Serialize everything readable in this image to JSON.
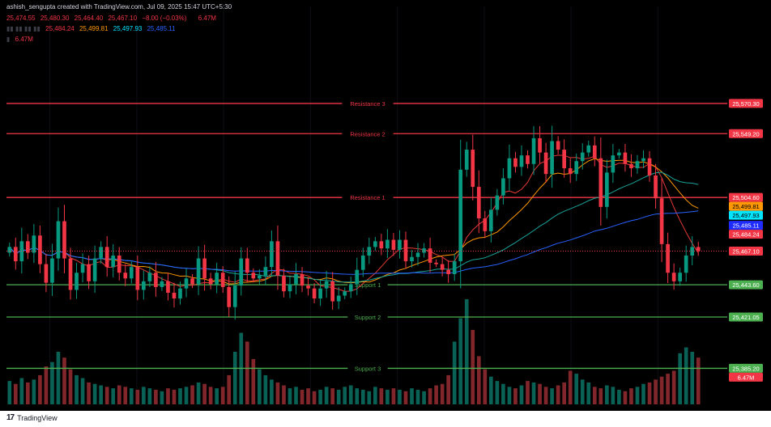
{
  "header": {
    "credit": "ashish_sengupta created with TradingView.com, Jul 09, 2025 15:47 UTC+5:30",
    "ohlc": {
      "open": "25,474.55",
      "high": "25,480.30",
      "low": "25,464.40",
      "close": "25,467.10",
      "change": "−8.00 (−0.03%)",
      "volume": "6.47M"
    },
    "ma_values": [
      "25,484.24",
      "25,499.81",
      "25,497.93",
      "25,485.11"
    ],
    "volume_value": "6.47M"
  },
  "footer": {
    "logo_text": "TradingView"
  },
  "colors": {
    "background": "#000000",
    "up": "#089981",
    "down": "#f23645",
    "ma_red": "#e53935",
    "ma_orange": "#ff9800",
    "ma_cyan": "#1aa39a",
    "ma_blue": "#2962ff",
    "resistance": "#f23645",
    "support": "#4caf50"
  },
  "chart_data": {
    "type": "candlestick",
    "y_range": [
      25360,
      25620
    ],
    "price_axis_badges": [
      {
        "value": "25,570.30",
        "kind": "resistance",
        "price": 25570.3
      },
      {
        "value": "25,549.20",
        "kind": "resistance",
        "price": 25549.2
      },
      {
        "value": "25,504.60",
        "kind": "resistance",
        "price": 25504.6
      },
      {
        "value": "25,499.81",
        "kind": "ma_orange",
        "price": 25499.81
      },
      {
        "value": "25,497.93",
        "kind": "ma_cyan",
        "price": 25497.93
      },
      {
        "value": "25,485.11",
        "kind": "ma_blue",
        "price": 25485.11
      },
      {
        "value": "25,484.24",
        "kind": "ma_red",
        "price": 25484.24
      },
      {
        "value": "25,467.10",
        "kind": "last",
        "price": 25467.1
      },
      {
        "value": "25,443.60",
        "kind": "support",
        "price": 25443.6
      },
      {
        "value": "25,421.05",
        "kind": "support",
        "price": 25421.05
      },
      {
        "value": "25,385.20",
        "kind": "support",
        "price": 25385.2
      },
      {
        "value": "6.47M",
        "kind": "volume",
        "price": null
      }
    ],
    "levels": [
      {
        "label": "Resistance 3",
        "price": 25570.3,
        "kind": "resistance"
      },
      {
        "label": "Resistance 2",
        "price": 25549.2,
        "kind": "resistance"
      },
      {
        "label": "Resistance 1",
        "price": 25504.6,
        "kind": "resistance"
      },
      {
        "label": "Support 1",
        "price": 25443.6,
        "kind": "support"
      },
      {
        "label": "Support 2",
        "price": 25421.05,
        "kind": "support"
      },
      {
        "label": "Support 3",
        "price": 25385.2,
        "kind": "support"
      }
    ],
    "last_price": 25467.1,
    "price_path": [
      25470,
      25460,
      25474,
      25466,
      25478,
      25458,
      25445,
      25462,
      25488,
      25462,
      25440,
      25452,
      25458,
      25446,
      25462,
      25470,
      25456,
      25464,
      25452,
      25448,
      25456,
      25440,
      25446,
      25452,
      25442,
      25446,
      25438,
      25434,
      25441,
      25448,
      25444,
      25462,
      25448,
      25444,
      25452,
      25442,
      25428,
      25443,
      25462,
      25452,
      25448,
      25450,
      25456,
      25474,
      25450,
      25439,
      25444,
      25451,
      25443,
      25441,
      25434,
      25441,
      25446,
      25432,
      25436,
      25439,
      25444,
      25454,
      25464,
      25470,
      25474,
      25469,
      25475,
      25468,
      25475,
      25460,
      25463,
      25466,
      25469,
      25459,
      25458,
      25454,
      25451,
      25460,
      25524,
      25538,
      25512,
      25490,
      25481,
      25496,
      25506,
      25518,
      25532,
      25526,
      25534,
      25528,
      25546,
      25536,
      25521,
      25544,
      25538,
      25525,
      25521,
      25530,
      25536,
      25541,
      25532,
      25498,
      25522,
      25534,
      25536,
      25528,
      25525,
      25530,
      25532,
      25520,
      25504,
      25472,
      25452,
      25446,
      25452,
      25464,
      25470,
      25467.1
    ],
    "volume": [
      0.32,
      0.28,
      0.36,
      0.3,
      0.34,
      0.4,
      0.52,
      0.58,
      0.72,
      0.64,
      0.48,
      0.4,
      0.36,
      0.3,
      0.28,
      0.26,
      0.24,
      0.22,
      0.26,
      0.24,
      0.22,
      0.2,
      0.24,
      0.22,
      0.2,
      0.18,
      0.22,
      0.2,
      0.22,
      0.24,
      0.26,
      0.3,
      0.28,
      0.24,
      0.22,
      0.24,
      0.4,
      0.72,
      0.98,
      0.86,
      0.62,
      0.48,
      0.4,
      0.34,
      0.3,
      0.26,
      0.22,
      0.24,
      0.2,
      0.22,
      0.18,
      0.2,
      0.24,
      0.22,
      0.2,
      0.24,
      0.26,
      0.22,
      0.2,
      0.18,
      0.24,
      0.22,
      0.2,
      0.22,
      0.2,
      0.18,
      0.22,
      0.2,
      0.18,
      0.22,
      0.26,
      0.28,
      0.4,
      0.86,
      1.18,
      1.44,
      1.02,
      0.66,
      0.48,
      0.38,
      0.32,
      0.28,
      0.24,
      0.22,
      0.26,
      0.32,
      0.3,
      0.28,
      0.24,
      0.22,
      0.26,
      0.3,
      0.46,
      0.42,
      0.34,
      0.3,
      0.24,
      0.22,
      0.26,
      0.24,
      0.2,
      0.18,
      0.22,
      0.24,
      0.28,
      0.3,
      0.34,
      0.38,
      0.42,
      0.46,
      0.7,
      0.78,
      0.72,
      0.64
    ]
  }
}
